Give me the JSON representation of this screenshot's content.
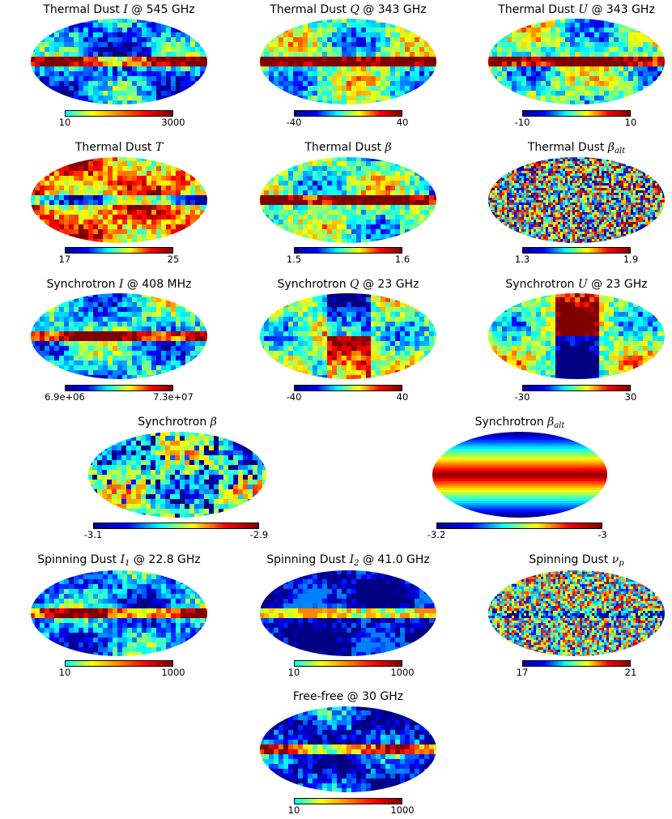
{
  "panels": [
    {
      "id": "thermal-dust-i",
      "title": {
        "pre": "Thermal Dust ",
        "math": "I",
        "sub": "",
        "post": " @ 545 GHz"
      },
      "colorbar": {
        "min": "10",
        "max": "3000",
        "scale": "hot"
      },
      "style": "dust"
    },
    {
      "id": "thermal-dust-q",
      "title": {
        "pre": "Thermal Dust ",
        "math": "Q",
        "sub": "",
        "post": " @ 343 GHz"
      },
      "colorbar": {
        "min": "-40",
        "max": "40",
        "scale": "jet"
      },
      "style": "pol"
    },
    {
      "id": "thermal-dust-u",
      "title": {
        "pre": "Thermal Dust ",
        "math": "U",
        "sub": "",
        "post": " @ 343 GHz"
      },
      "colorbar": {
        "min": "-10",
        "max": "10",
        "scale": "jet"
      },
      "style": "pol2"
    },
    {
      "id": "thermal-dust-t",
      "title": {
        "pre": "Thermal Dust ",
        "math": "T",
        "sub": "",
        "post": ""
      },
      "colorbar": {
        "min": "17",
        "max": "25",
        "scale": "jet"
      },
      "style": "temp"
    },
    {
      "id": "thermal-dust-beta",
      "title": {
        "pre": "Thermal Dust ",
        "math": "β",
        "sub": "",
        "post": ""
      },
      "colorbar": {
        "min": "1.5",
        "max": "1.6",
        "scale": "jet"
      },
      "style": "beta"
    },
    {
      "id": "thermal-dust-beta-alt",
      "title": {
        "pre": "Thermal Dust ",
        "math": "β",
        "sub": "alt",
        "post": ""
      },
      "colorbar": {
        "min": "1.3",
        "max": "1.9",
        "scale": "jet"
      },
      "style": "noise"
    },
    {
      "id": "synchrotron-i",
      "title": {
        "pre": "Synchrotron ",
        "math": "I",
        "sub": "",
        "post": " @ 408 MHz"
      },
      "colorbar": {
        "min": "6.9e+06",
        "max": "7.3e+07",
        "scale": "jet"
      },
      "style": "sync"
    },
    {
      "id": "synchrotron-q",
      "title": {
        "pre": "Synchrotron ",
        "math": "Q",
        "sub": "",
        "post": " @ 23 GHz"
      },
      "colorbar": {
        "min": "-40",
        "max": "40",
        "scale": "jet"
      },
      "style": "syncq"
    },
    {
      "id": "synchrotron-u",
      "title": {
        "pre": "Synchrotron ",
        "math": "U",
        "sub": "",
        "post": " @ 23 GHz"
      },
      "colorbar": {
        "min": "-30",
        "max": "30",
        "scale": "jet"
      },
      "style": "syncu"
    },
    {
      "id": "synchrotron-beta",
      "title": {
        "pre": "Synchrotron ",
        "math": "β",
        "sub": "",
        "post": ""
      },
      "colorbar": {
        "min": "-3.1",
        "max": "-2.9",
        "scale": "jet"
      },
      "style": "syncbeta"
    },
    {
      "id": "synchrotron-beta-alt",
      "title": {
        "pre": "Synchrotron ",
        "math": "β",
        "sub": "alt",
        "post": ""
      },
      "colorbar": {
        "min": "-3.2",
        "max": "-3",
        "scale": "jet"
      },
      "style": "band"
    },
    {
      "id": "spinning-dust-i1",
      "title": {
        "pre": "Spinning Dust ",
        "math": "I",
        "sub": "1",
        "post": " @ 22.8 GHz"
      },
      "colorbar": {
        "min": "10",
        "max": "1000",
        "scale": "hot"
      },
      "style": "spin1"
    },
    {
      "id": "spinning-dust-i2",
      "title": {
        "pre": "Spinning Dust ",
        "math": "I",
        "sub": "2",
        "post": " @ 41.0 GHz"
      },
      "colorbar": {
        "min": "10",
        "max": "1000",
        "scale": "hot"
      },
      "style": "spin2"
    },
    {
      "id": "spinning-dust-nup",
      "title": {
        "pre": "Spinning Dust ",
        "math": "ν",
        "sub": "p",
        "post": ""
      },
      "colorbar": {
        "min": "17",
        "max": "21",
        "scale": "jet"
      },
      "style": "noise2"
    },
    {
      "id": "free-free",
      "title": {
        "pre": "Free-free @ 30 GHz",
        "math": "",
        "sub": "",
        "post": ""
      },
      "colorbar": {
        "min": "10",
        "max": "1000",
        "scale": "hot"
      },
      "style": "ff"
    }
  ],
  "colors": {
    "jet": [
      "#00008f",
      "#0000ff",
      "#00ffff",
      "#ffff00",
      "#ff0000",
      "#800000"
    ],
    "hot": [
      "#00ffff",
      "#ffff00",
      "#ff8000",
      "#ff0000",
      "#800000"
    ]
  }
}
